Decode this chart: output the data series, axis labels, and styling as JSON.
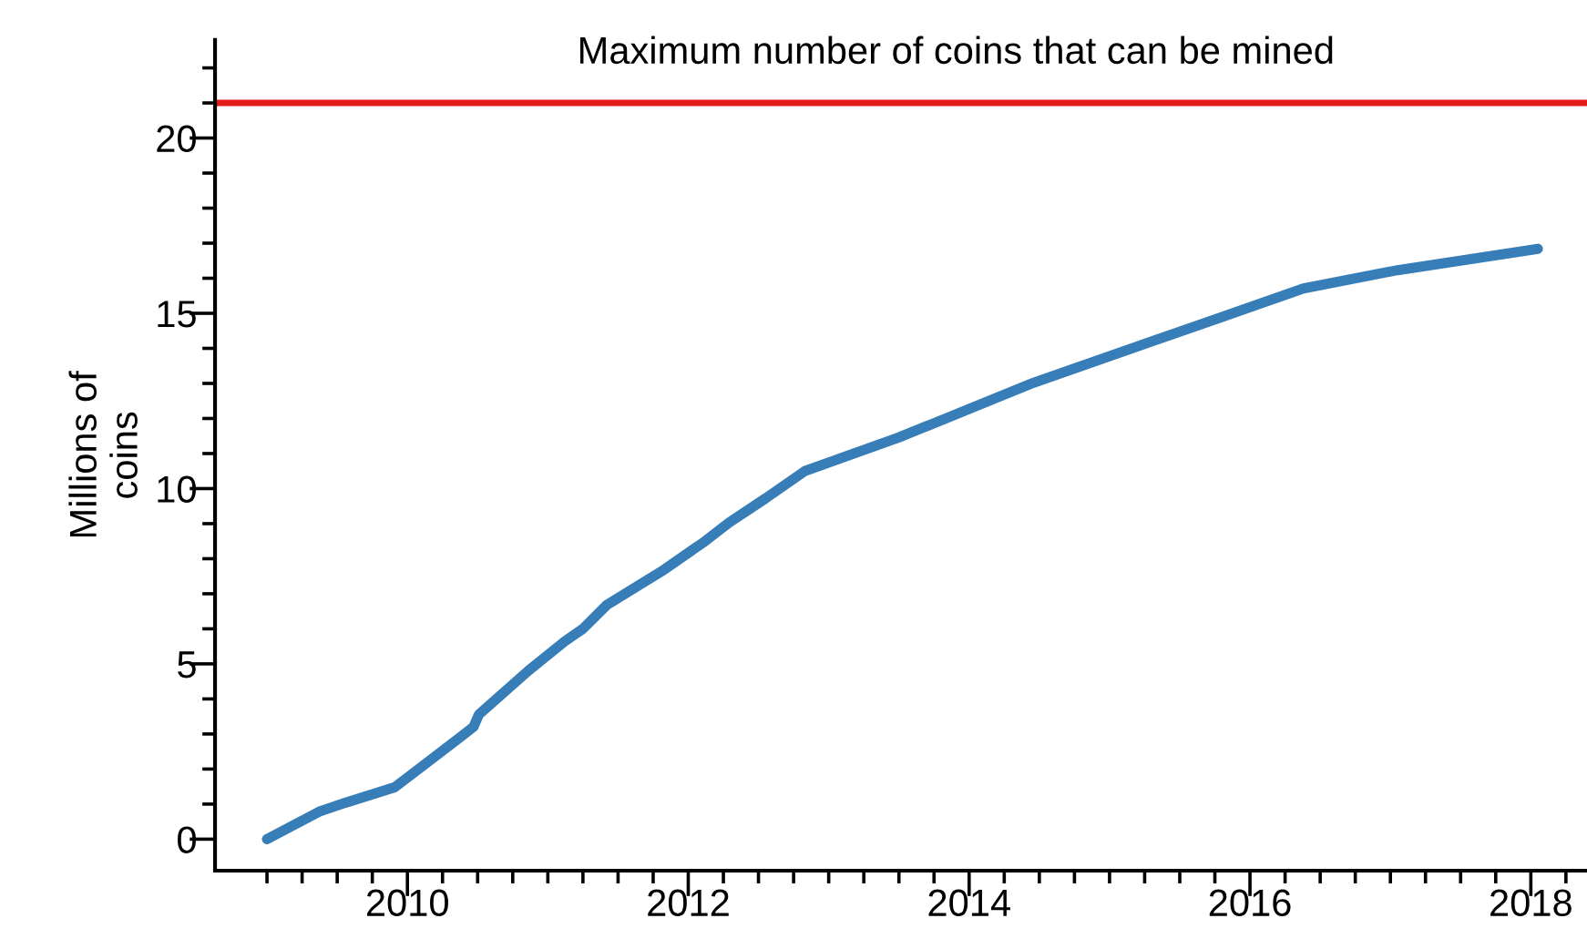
{
  "chart_data": {
    "type": "line",
    "ylabel": "Millions of\ncoins",
    "x": [
      2009.0,
      2009.37,
      2009.56,
      2009.91,
      2010.08,
      2010.47,
      2010.51,
      2010.86,
      2011.12,
      2011.25,
      2011.42,
      2011.81,
      2012.12,
      2012.29,
      2012.55,
      2012.83,
      2013.5,
      2014.46,
      2015.76,
      2016.38,
      2017.05,
      2018.05
    ],
    "series": [
      {
        "color": "#377eb8",
        "values": [
          0,
          0.78,
          1.04,
          1.48,
          2.0,
          3.2,
          3.56,
          4.8,
          5.64,
          6.0,
          6.68,
          7.64,
          8.5,
          9.03,
          9.72,
          10.5,
          11.46,
          13.02,
          14.84,
          15.71,
          16.23,
          16.84
        ]
      }
    ],
    "ref_lines": [
      {
        "axis": "y",
        "value": 21,
        "label": "Maximum number of coins that can be mined",
        "color": "#e41a1c"
      }
    ],
    "xlim": [
      2008.63,
      2018.4
    ],
    "ylim": [
      -0.9,
      22.8
    ],
    "xticks": [
      {
        "value": 2009,
        "label": null
      },
      {
        "value": 2009.25,
        "label": null
      },
      {
        "value": 2009.5,
        "label": null
      },
      {
        "value": 2009.75,
        "label": null
      },
      2010,
      {
        "value": 2010.25,
        "label": null
      },
      {
        "value": 2010.5,
        "label": null
      },
      {
        "value": 2010.75,
        "label": null
      },
      {
        "value": 2011,
        "label": null
      },
      {
        "value": 2011.25,
        "label": null
      },
      {
        "value": 2011.5,
        "label": null
      },
      {
        "value": 2011.75,
        "label": null
      },
      2012,
      {
        "value": 2012.25,
        "label": null
      },
      {
        "value": 2012.5,
        "label": null
      },
      {
        "value": 2012.75,
        "label": null
      },
      {
        "value": 2013,
        "label": null
      },
      {
        "value": 2013.25,
        "label": null
      },
      {
        "value": 2013.5,
        "label": null
      },
      {
        "value": 2013.75,
        "label": null
      },
      2014,
      {
        "value": 2014.25,
        "label": null
      },
      {
        "value": 2014.5,
        "label": null
      },
      {
        "value": 2014.75,
        "label": null
      },
      {
        "value": 2015,
        "label": null
      },
      {
        "value": 2015.25,
        "label": null
      },
      {
        "value": 2015.5,
        "label": null
      },
      {
        "value": 2015.75,
        "label": null
      },
      2016,
      {
        "value": 2016.25,
        "label": null
      },
      {
        "value": 2016.5,
        "label": null
      },
      {
        "value": 2016.75,
        "label": null
      },
      {
        "value": 2017,
        "label": null
      },
      {
        "value": 2017.25,
        "label": null
      },
      {
        "value": 2017.5,
        "label": null
      },
      {
        "value": 2017.75,
        "label": null
      },
      2018,
      {
        "value": 2018.25,
        "label": null
      }
    ],
    "yticks": [
      0,
      {
        "value": 1,
        "label": null
      },
      {
        "value": 2,
        "label": null
      },
      {
        "value": 3,
        "label": null
      },
      {
        "value": 4,
        "label": null
      },
      5,
      {
        "value": 6,
        "label": null
      },
      {
        "value": 7,
        "label": null
      },
      {
        "value": 8,
        "label": null
      },
      {
        "value": 9,
        "label": null
      },
      10,
      {
        "value": 11,
        "label": null
      },
      {
        "value": 12,
        "label": null
      },
      {
        "value": 13,
        "label": null
      },
      {
        "value": 14,
        "label": null
      },
      15,
      {
        "value": 16,
        "label": null
      },
      {
        "value": 17,
        "label": null
      },
      {
        "value": 18,
        "label": null
      },
      {
        "value": 19,
        "label": null
      },
      20,
      {
        "value": 21,
        "label": null
      },
      {
        "value": 22,
        "label": null
      }
    ],
    "grid": false,
    "legend": false,
    "line_style": "solid",
    "marker": "none"
  }
}
